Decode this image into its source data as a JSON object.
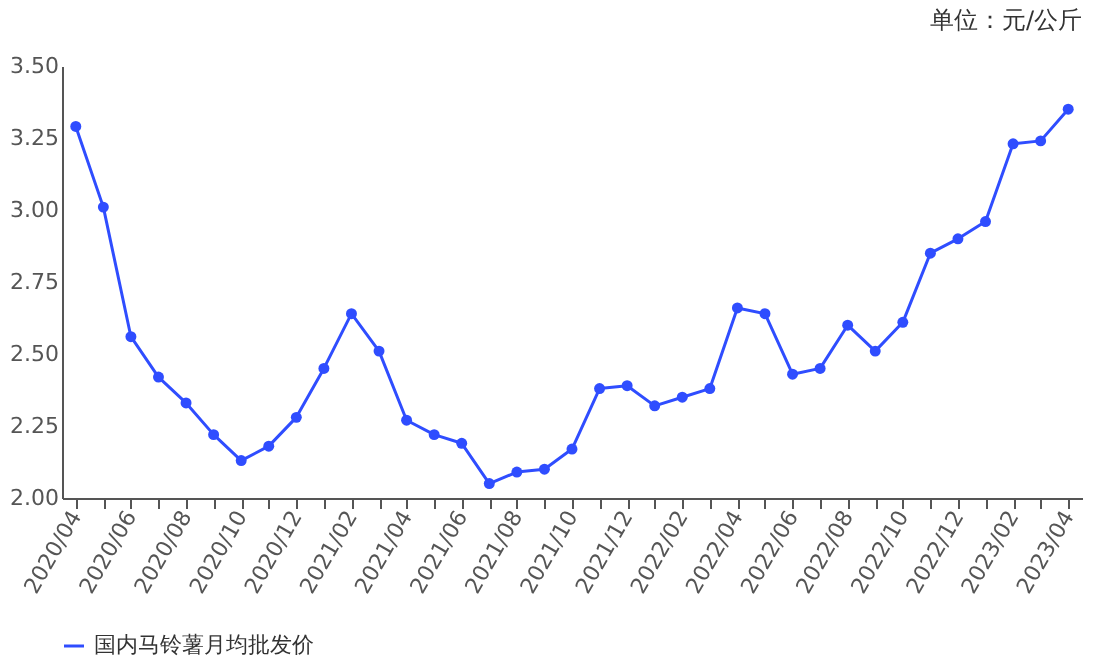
{
  "chart_data": {
    "type": "line",
    "annotations": [
      "单位：元/公斤"
    ],
    "categories": [
      "2020/04",
      null,
      "2020/06",
      null,
      "2020/08",
      null,
      "2020/10",
      null,
      "2020/12",
      null,
      "2021/02",
      null,
      "2021/04",
      null,
      "2021/06",
      null,
      "2021/08",
      null,
      "2021/10",
      null,
      "2021/12",
      null,
      "2022/02",
      null,
      "2022/04",
      null,
      "2022/06",
      null,
      "2022/08",
      null,
      "2022/10",
      null,
      "2022/12",
      null,
      "2023/02",
      null,
      "2023/04"
    ],
    "series": [
      {
        "name": "国内马铃薯月均批发价",
        "color": "#2f4dff",
        "values": [
          3.29,
          3.01,
          2.56,
          2.42,
          2.33,
          2.22,
          2.13,
          2.18,
          2.28,
          2.45,
          2.64,
          2.51,
          2.27,
          2.22,
          2.19,
          2.05,
          2.09,
          2.1,
          2.17,
          2.38,
          2.39,
          2.32,
          2.35,
          2.38,
          2.66,
          2.64,
          2.43,
          2.45,
          2.6,
          2.51,
          2.61,
          2.85,
          2.9,
          2.96,
          3.23,
          3.24,
          3.35
        ]
      }
    ],
    "ylim": [
      2.0,
      3.5
    ],
    "yticks": [
      {
        "value": 2,
        "label": "2.00"
      },
      {
        "value": 2.25,
        "label": "2.25"
      },
      {
        "value": 2.5,
        "label": "2.50"
      },
      {
        "value": 2.75,
        "label": "2.75"
      },
      {
        "value": 3,
        "label": "3.00"
      },
      {
        "value": 3.25,
        "label": "3.25"
      },
      {
        "value": 3.5,
        "label": "3.50"
      }
    ],
    "grid": false,
    "legend": "bottom",
    "marker": "circle",
    "line_style": "solid"
  }
}
